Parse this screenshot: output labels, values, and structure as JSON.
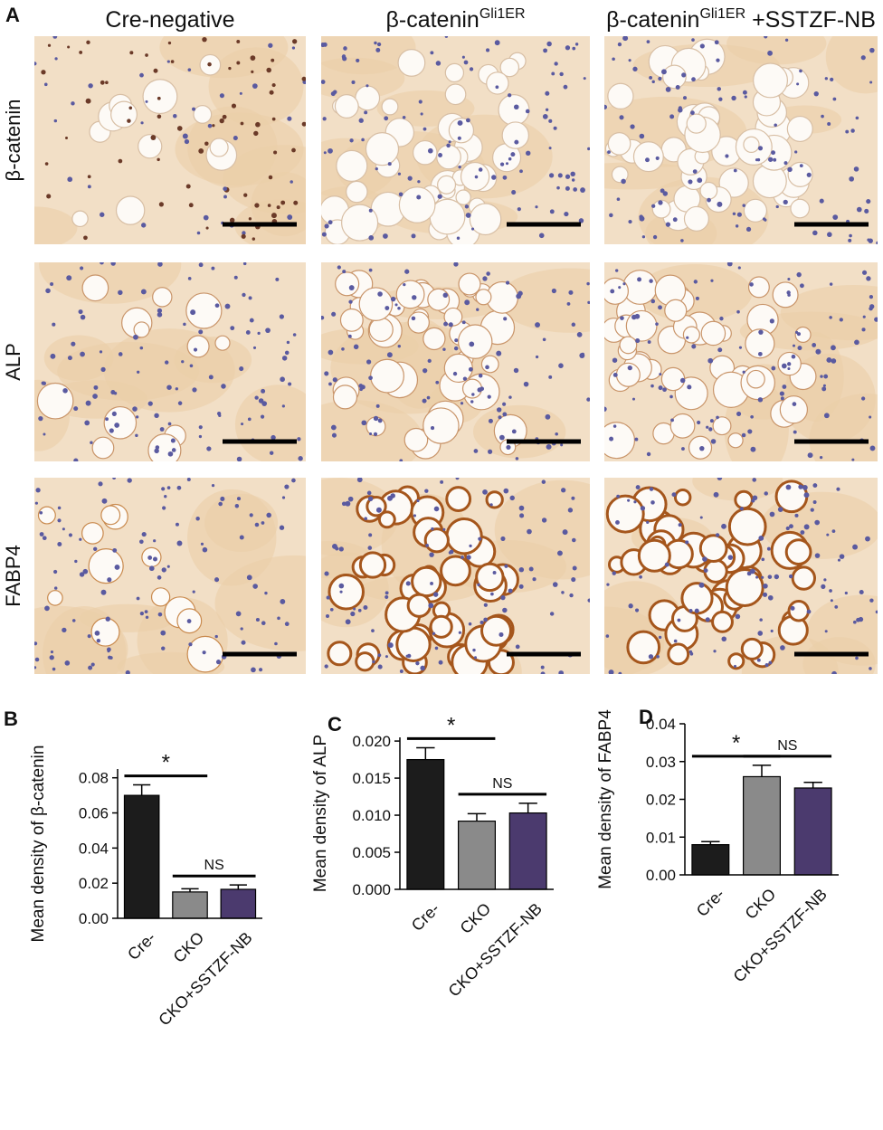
{
  "panel_labels": [
    "A",
    "B",
    "C",
    "D"
  ],
  "column_headers": [
    {
      "text": "Cre-negative"
    },
    {
      "text": "β-catenin",
      "sup": "Gli1ER"
    },
    {
      "text": "β-catenin",
      "sup": "Gli1ER",
      "suffix": " +SSTZF-NB"
    }
  ],
  "row_labels": [
    "β-catenin",
    "ALP",
    "FABP4"
  ],
  "chart_data": [
    {
      "type": "bar",
      "ylabel": "Mean density of β-catenin",
      "categories": [
        "Cre-",
        "CKO",
        "CKO+SSTZF-NB"
      ],
      "values": [
        0.07,
        0.015,
        0.0165
      ],
      "errors": [
        0.006,
        0.0018,
        0.0025
      ],
      "colors": [
        "#1c1c1c",
        "#8a8a8a",
        "#4b3a6e"
      ],
      "ylim": [
        0,
        0.085
      ],
      "yticks": [
        {
          "value": 0,
          "label": "0.00"
        },
        0.02,
        0.04,
        0.06,
        0.08
      ],
      "annotations": [
        {
          "text": "*",
          "between": [
            "Cre-",
            "CKO"
          ]
        },
        {
          "text": "NS",
          "between": [
            "CKO",
            "CKO+SSTZF-NB"
          ]
        }
      ]
    },
    {
      "type": "bar",
      "ylabel": "Mean density of ALP",
      "categories": [
        "Cre-",
        "CKO",
        "CKO+SSTZF-NB"
      ],
      "values": [
        0.0175,
        0.0092,
        0.0103
      ],
      "errors": [
        0.0016,
        0.001,
        0.0013
      ],
      "colors": [
        "#1c1c1c",
        "#8a8a8a",
        "#4b3a6e"
      ],
      "ylim": [
        0,
        0.0205
      ],
      "yticks": [
        {
          "value": 0,
          "label": "0.000"
        },
        0.005,
        {
          "value": 0.01,
          "label": "0.010"
        },
        0.015,
        {
          "value": 0.02,
          "label": "0.020"
        }
      ],
      "annotations": [
        {
          "text": "*",
          "between": [
            "Cre-",
            "CKO"
          ]
        },
        {
          "text": "NS",
          "between": [
            "CKO",
            "CKO+SSTZF-NB"
          ]
        }
      ]
    },
    {
      "type": "bar",
      "ylabel": "Mean density of FABP4",
      "categories": [
        "Cre-",
        "CKO",
        "CKO+SSTZF-NB"
      ],
      "values": [
        0.008,
        0.026,
        0.023
      ],
      "errors": [
        0.0008,
        0.003,
        0.0015
      ],
      "colors": [
        "#1c1c1c",
        "#8a8a8a",
        "#4b3a6e"
      ],
      "ylim": [
        0,
        0.04
      ],
      "yticks": [
        {
          "value": 0,
          "label": "0.00"
        },
        0.01,
        0.02,
        0.03,
        0.04
      ],
      "annotations": [
        {
          "text": "*",
          "between": [
            "Cre-",
            "CKO"
          ]
        },
        {
          "text": "NS",
          "between": [
            "CKO",
            "CKO+SSTZF-NB"
          ]
        }
      ]
    }
  ]
}
